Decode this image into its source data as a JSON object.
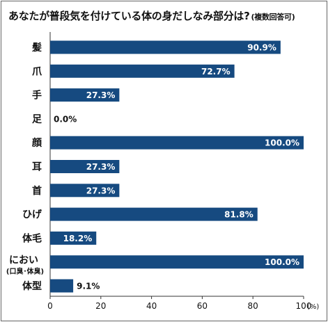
{
  "title": "あなたが普段気を付けている体の身だしなみ部分は?",
  "subtitle": "(複数回答可)",
  "chart_data": {
    "type": "bar",
    "orientation": "horizontal",
    "categories": [
      {
        "label": "髪"
      },
      {
        "label": "爪"
      },
      {
        "label": "手"
      },
      {
        "label": "足"
      },
      {
        "label": "顔"
      },
      {
        "label": "耳"
      },
      {
        "label": "首"
      },
      {
        "label": "ひげ"
      },
      {
        "label": "体毛"
      },
      {
        "label": "におい",
        "sublabel": "(口臭･体臭)"
      },
      {
        "label": "体型"
      }
    ],
    "values": [
      90.9,
      72.7,
      27.3,
      0.0,
      100.0,
      27.3,
      27.3,
      81.8,
      18.2,
      100.0,
      9.1
    ],
    "value_labels": [
      "90.9%",
      "72.7%",
      "27.3%",
      "0.0%",
      "100.0%",
      "27.3%",
      "27.3%",
      "81.8%",
      "18.2%",
      "100.0%",
      "9.1%"
    ],
    "xlim": [
      0,
      100
    ],
    "xticks": [
      "0",
      "20",
      "40",
      "60",
      "80",
      "100"
    ],
    "xunit": "(%)",
    "bar_color": "#164a80",
    "grid": false
  }
}
